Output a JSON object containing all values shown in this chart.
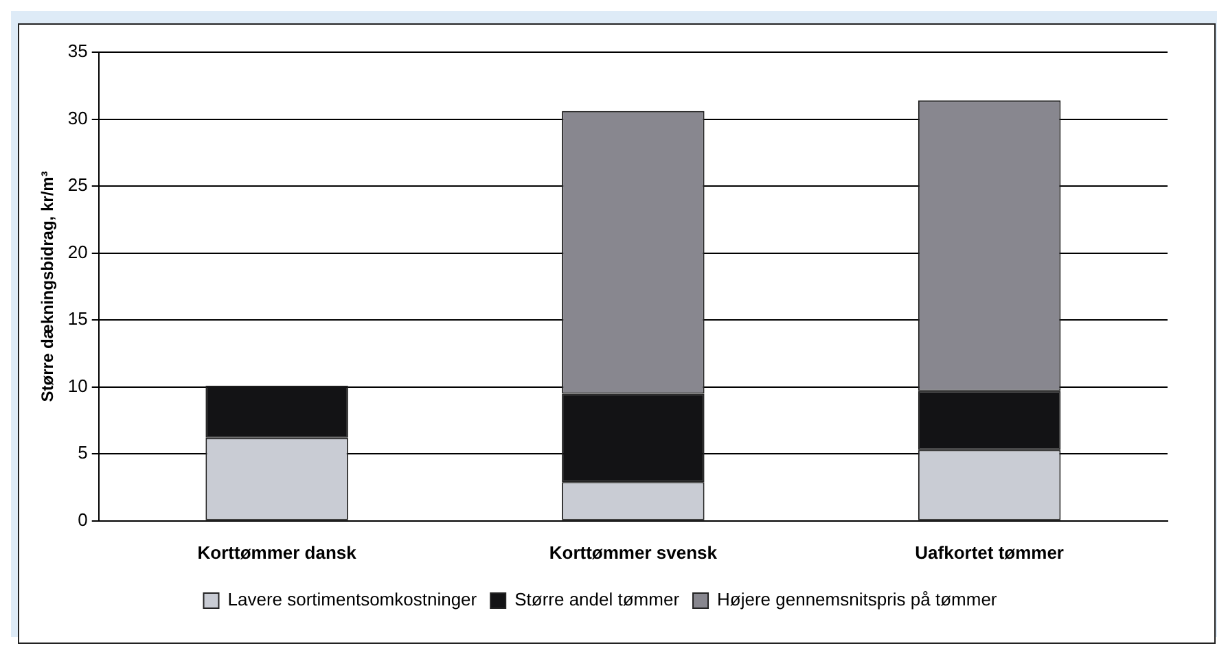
{
  "chart_data": {
    "type": "bar",
    "stacked": true,
    "ylabel": "Større dækningsbidrag, kr/m³",
    "categories": [
      "Korttømmer dansk",
      "Korttømmer svensk",
      "Uafkortet tømmer"
    ],
    "series": [
      {
        "name": "Lavere sortimentsomkostninger",
        "color": "#c9ccd4",
        "values": [
          6.2,
          2.9,
          5.3
        ]
      },
      {
        "name": "Større andel tømmer",
        "color": "#131315",
        "values": [
          3.9,
          6.6,
          4.4
        ]
      },
      {
        "name": "Højere gennemsnitspris på tømmer",
        "color": "#88878f",
        "values": [
          0,
          21.1,
          21.7
        ]
      }
    ],
    "ylim": [
      0,
      35
    ],
    "yticks": [
      0,
      5,
      10,
      15,
      20,
      25,
      30,
      35
    ],
    "grid": "y",
    "legend": "bottom"
  }
}
